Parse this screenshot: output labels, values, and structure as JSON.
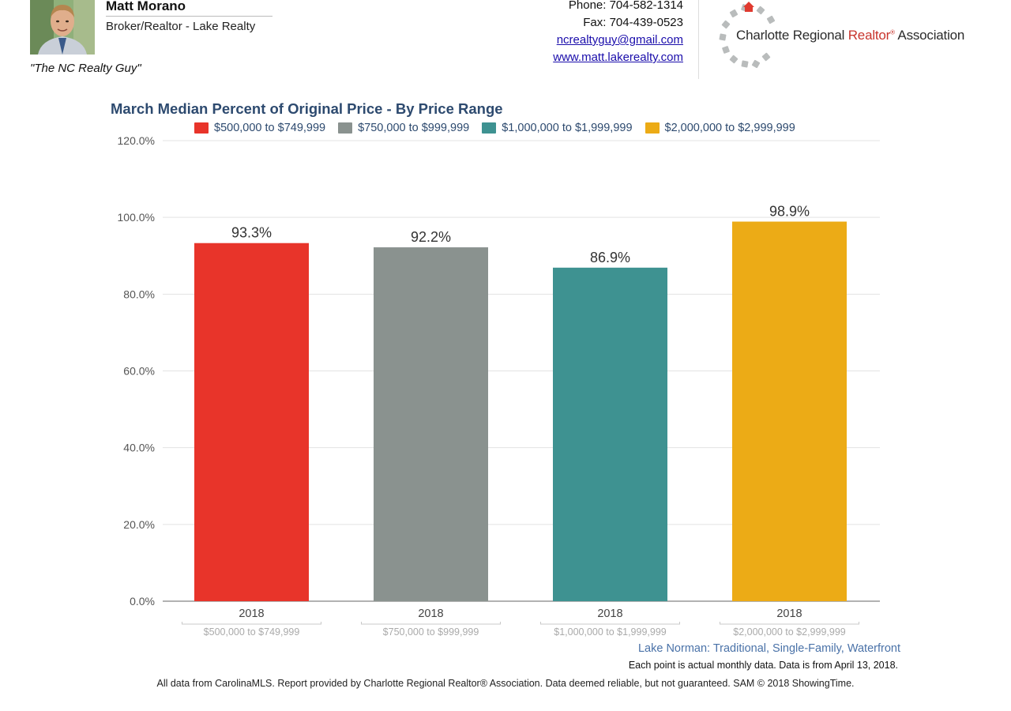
{
  "agent": {
    "name": "Matt Morano",
    "title": "Broker/Realtor - Lake Realty",
    "tagline": "\"The NC Realty Guy\""
  },
  "contact": {
    "phone": "Phone: 704-582-1314",
    "fax": "Fax: 704-439-0523",
    "email": "ncrealtyguy@gmail.com",
    "website": "www.matt.lakerealty.com"
  },
  "association": {
    "name_part1": "Charlotte Regional ",
    "name_realtor": "Realtor",
    "name_reg": "®",
    "name_part2": " Association"
  },
  "colors": {
    "red": "#e8342a",
    "gray": "#8a928f",
    "teal": "#3e9291",
    "gold": "#ecab16",
    "title_blue": "#2d4a6f",
    "subtitle_blue": "#4a72a8"
  },
  "chart_data": {
    "type": "bar",
    "title": "March Median Percent of Original Price - By Price Range",
    "subtitle": "Lake Norman: Traditional, Single-Family, Waterfront",
    "note": "Each point is actual monthly data. Data is from April 13, 2018.",
    "ylim": [
      0,
      120
    ],
    "yticks": [
      "0.0%",
      "20.0%",
      "40.0%",
      "60.0%",
      "80.0%",
      "100.0%",
      "120.0%"
    ],
    "grid": true,
    "legend_position": "top",
    "categories": [
      "$500,000 to $749,999",
      "$750,000 to $999,999",
      "$1,000,000 to $1,999,999",
      "$2,000,000 to $2,999,999"
    ],
    "series": [
      {
        "name": "$500,000 to $749,999",
        "x": "2018",
        "value": 93.3,
        "label": "93.3%",
        "color": "#e8342a"
      },
      {
        "name": "$750,000 to $999,999",
        "x": "2018",
        "value": 92.2,
        "label": "92.2%",
        "color": "#8a928f"
      },
      {
        "name": "$1,000,000 to $1,999,999",
        "x": "2018",
        "value": 86.9,
        "label": "86.9%",
        "color": "#3e9291"
      },
      {
        "name": "$2,000,000 to $2,999,999",
        "x": "2018",
        "value": 98.9,
        "label": "98.9%",
        "color": "#ecab16"
      }
    ]
  },
  "footer": {
    "text": "All data from CarolinaMLS. Report provided by Charlotte Regional Realtor® Association. Data deemed reliable, but not guaranteed. SAM © 2018 ShowingTime."
  }
}
